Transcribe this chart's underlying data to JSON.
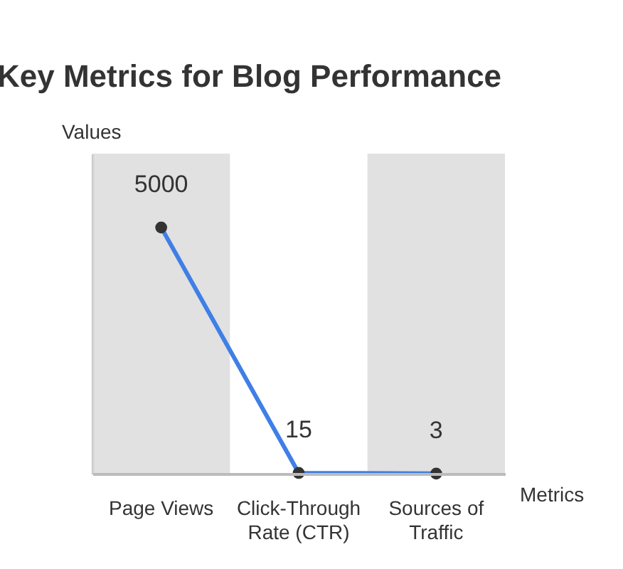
{
  "chart_data": {
    "type": "line",
    "title": "Key Metrics for Blog Performance",
    "xlabel": "Metrics",
    "ylabel": "Values",
    "categories": [
      "Page Views",
      "Click-Through Rate (CTR)",
      "Sources of Traffic"
    ],
    "series": [
      {
        "color": "#3f7fe6",
        "values": [
          5000,
          15,
          3
        ]
      }
    ],
    "data_labels": true,
    "marker": "circle",
    "bands": [
      {
        "axis": "x",
        "from": "Page Views",
        "to": "Page Views",
        "color": "#dcdcdc"
      },
      {
        "axis": "x",
        "from": "Sources of Traffic",
        "to": "Sources of Traffic",
        "color": "#dcdcdc"
      }
    ]
  }
}
